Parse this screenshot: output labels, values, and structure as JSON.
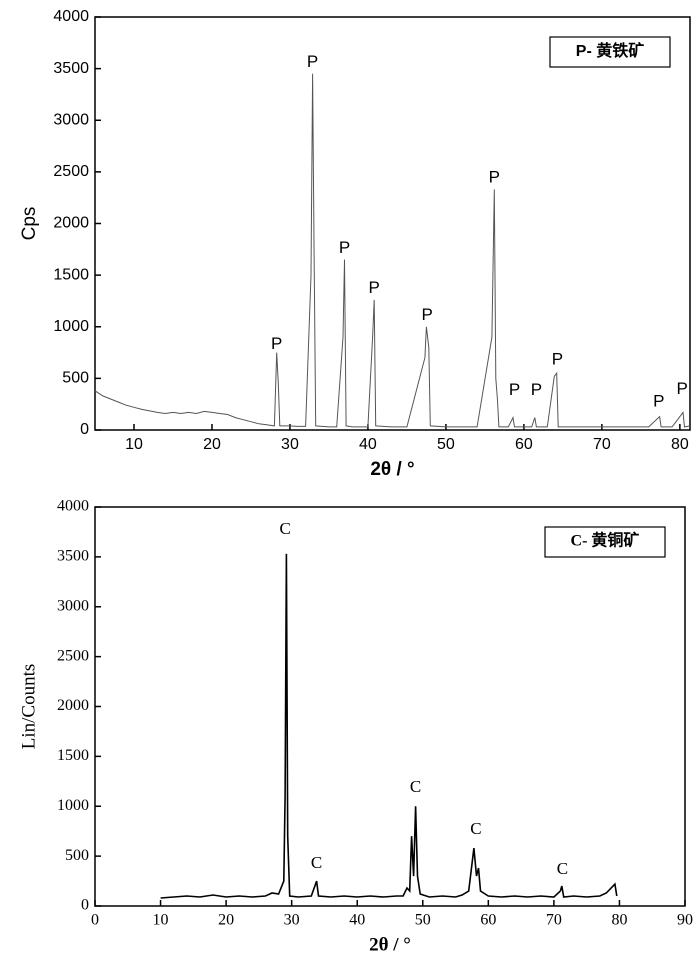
{
  "chart_data": [
    {
      "type": "line",
      "xlabel": "2θ / °",
      "ylabel": "Cps",
      "xlim": [
        5,
        81.3
      ],
      "xticks": [
        10,
        20,
        30,
        40,
        50,
        60,
        70,
        80
      ],
      "ylim": [
        0,
        4000
      ],
      "yticks": [
        0,
        500,
        1000,
        1500,
        2000,
        2500,
        3000,
        3500,
        4000
      ],
      "legend": "upper right",
      "series": [
        {
          "name": "P- 黄铁矿",
          "color": "#555555",
          "x": [
            5,
            6,
            7,
            8,
            9,
            10,
            11,
            12,
            13,
            14,
            15,
            16,
            17,
            18,
            19,
            20,
            21,
            22,
            23,
            24,
            25,
            26,
            27,
            28,
            28.3,
            28.5,
            28.7,
            30,
            31,
            32,
            32.7,
            32.9,
            33.1,
            33.3,
            35,
            36,
            36.8,
            37.0,
            37.2,
            38,
            39,
            40,
            40.6,
            40.8,
            41.0,
            43,
            45,
            47.3,
            47.5,
            47.8,
            48.0,
            50,
            52,
            54,
            55.9,
            56.2,
            56.4,
            56.6,
            56.8,
            58,
            58.6,
            58.8,
            61,
            61.4,
            61.6,
            63,
            63.9,
            64.2,
            64.4,
            66,
            68,
            70,
            72,
            74,
            76,
            77.4,
            77.6,
            79,
            80.4,
            80.6,
            81.3
          ],
          "values": [
            380,
            330,
            300,
            270,
            240,
            220,
            200,
            185,
            170,
            160,
            170,
            160,
            170,
            160,
            180,
            170,
            160,
            150,
            120,
            100,
            80,
            60,
            50,
            40,
            750,
            450,
            40,
            40,
            35,
            35,
            1500,
            3450,
            1700,
            40,
            30,
            30,
            900,
            1650,
            40,
            30,
            30,
            30,
            900,
            1260,
            40,
            30,
            30,
            700,
            1000,
            800,
            40,
            30,
            30,
            30,
            900,
            2330,
            500,
            300,
            30,
            30,
            120,
            30,
            30,
            120,
            30,
            30,
            520,
            550,
            30,
            30,
            30,
            30,
            30,
            30,
            30,
            130,
            30,
            30,
            170,
            30,
            40
          ]
        }
      ],
      "annotations": [
        {
          "text": "P",
          "x": 28.3,
          "y": 830
        },
        {
          "text": "P",
          "x": 32.9,
          "y": 3560
        },
        {
          "text": "P",
          "x": 37.0,
          "y": 1760
        },
        {
          "text": "P",
          "x": 40.8,
          "y": 1370
        },
        {
          "text": "P",
          "x": 47.6,
          "y": 1110
        },
        {
          "text": "P",
          "x": 56.2,
          "y": 2440
        },
        {
          "text": "P",
          "x": 58.8,
          "y": 380
        },
        {
          "text": "P",
          "x": 61.6,
          "y": 380
        },
        {
          "text": "P",
          "x": 64.3,
          "y": 680
        },
        {
          "text": "P",
          "x": 77.3,
          "y": 270
        },
        {
          "text": "P",
          "x": 80.3,
          "y": 390
        }
      ]
    },
    {
      "type": "line",
      "xlabel": "2θ / °",
      "ylabel": "Lin/Counts",
      "xlim": [
        0,
        90
      ],
      "xticks": [
        0,
        10,
        20,
        30,
        40,
        50,
        60,
        70,
        80,
        90
      ],
      "ylim": [
        0,
        4000
      ],
      "yticks": [
        0,
        500,
        1000,
        1500,
        2000,
        2500,
        3000,
        3500,
        4000
      ],
      "legend": "upper right",
      "series": [
        {
          "name": "C- 黄铜矿",
          "color": "#000000",
          "x": [
            10,
            12,
            14,
            16,
            18,
            20,
            22,
            24,
            26,
            27,
            28,
            28.8,
            29.0,
            29.2,
            29.4,
            29.7,
            31,
            33,
            33.8,
            34.1,
            36,
            38,
            40,
            42,
            44,
            46,
            47,
            47.6,
            48.0,
            48.3,
            48.6,
            48.9,
            49.2,
            49.6,
            51,
            53,
            55,
            56,
            57,
            57.8,
            58.2,
            58.5,
            58.8,
            60,
            62,
            64,
            66,
            68,
            70,
            71,
            71.2,
            71.5,
            73,
            75,
            77,
            78,
            79.3,
            79.6
          ],
          "values": [
            80,
            90,
            100,
            90,
            110,
            90,
            100,
            90,
            100,
            130,
            120,
            250,
            1100,
            3530,
            700,
            100,
            90,
            100,
            250,
            100,
            90,
            100,
            90,
            100,
            90,
            100,
            100,
            180,
            150,
            700,
            300,
            1000,
            300,
            120,
            90,
            100,
            90,
            110,
            150,
            580,
            300,
            380,
            150,
            100,
            90,
            100,
            90,
            100,
            90,
            150,
            200,
            90,
            100,
            90,
            100,
            130,
            220,
            100
          ]
        }
      ],
      "annotations": [
        {
          "text": "C",
          "x": 29.0,
          "y": 3770
        },
        {
          "text": "C",
          "x": 33.8,
          "y": 420
        },
        {
          "text": "C",
          "x": 48.9,
          "y": 1180
        },
        {
          "text": "C",
          "x": 58.1,
          "y": 760
        },
        {
          "text": "C",
          "x": 71.3,
          "y": 360
        }
      ]
    }
  ]
}
